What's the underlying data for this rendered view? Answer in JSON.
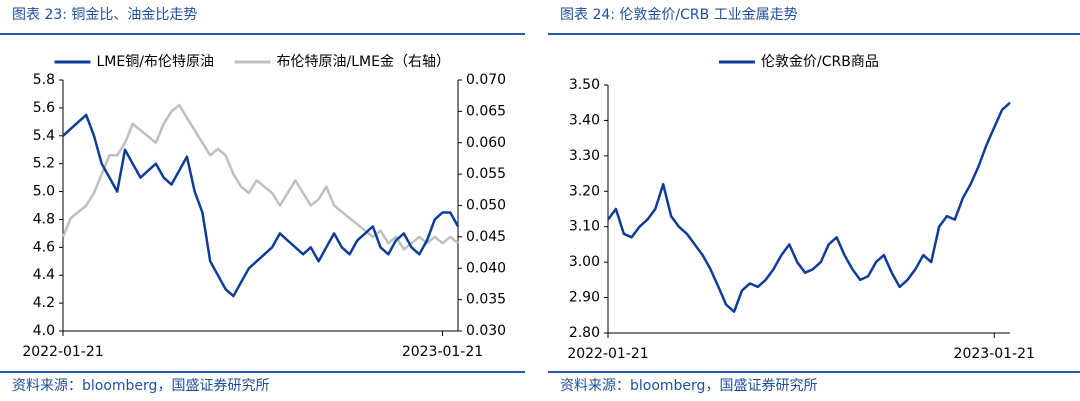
{
  "chart_data": [
    {
      "type": "line",
      "title": "图表 23: 铜金比、油金比走势",
      "source": "资料来源：bloomberg，国盛证券研究所",
      "categories": [
        "2022-01-21",
        null,
        null,
        null,
        null,
        null,
        null,
        null,
        null,
        null,
        null,
        null,
        null,
        null,
        null,
        null,
        null,
        null,
        null,
        null,
        null,
        null,
        null,
        null,
        null,
        null,
        null,
        null,
        null,
        null,
        null,
        null,
        null,
        null,
        null,
        null,
        null,
        null,
        null,
        null,
        null,
        null,
        null,
        null,
        null,
        null,
        null,
        null,
        null,
        "2023-01-21",
        null,
        null
      ],
      "series": [
        {
          "name": "LME铜/布伦特原油",
          "color": "#0e3c96",
          "axis": "y",
          "values": [
            5.4,
            5.45,
            5.5,
            5.55,
            5.4,
            5.2,
            5.1,
            5.0,
            5.3,
            5.2,
            5.1,
            5.15,
            5.2,
            5.1,
            5.05,
            5.15,
            5.25,
            5.0,
            4.85,
            4.5,
            4.4,
            4.3,
            4.25,
            4.35,
            4.45,
            4.5,
            4.55,
            4.6,
            4.7,
            4.65,
            4.6,
            4.55,
            4.6,
            4.5,
            4.6,
            4.7,
            4.6,
            4.55,
            4.65,
            4.7,
            4.75,
            4.6,
            4.55,
            4.65,
            4.7,
            4.6,
            4.55,
            4.65,
            4.8,
            4.85,
            4.85,
            4.75
          ]
        },
        {
          "name": "布伦特原油/LME金（右轴）",
          "color": "#bfbfbf",
          "axis": "y2",
          "values": [
            0.045,
            0.048,
            0.049,
            0.05,
            0.052,
            0.055,
            0.058,
            0.058,
            0.06,
            0.063,
            0.062,
            0.061,
            0.06,
            0.063,
            0.065,
            0.066,
            0.064,
            0.062,
            0.06,
            0.058,
            0.059,
            0.058,
            0.055,
            0.053,
            0.052,
            0.054,
            0.053,
            0.052,
            0.05,
            0.052,
            0.054,
            0.052,
            0.05,
            0.051,
            0.053,
            0.05,
            0.049,
            0.048,
            0.047,
            0.046,
            0.045,
            0.046,
            0.044,
            0.045,
            0.043,
            0.044,
            0.045,
            0.044,
            0.045,
            0.044,
            0.045,
            0.044
          ]
        }
      ],
      "ylim": [
        4.0,
        5.8
      ],
      "yticks": [
        {
          "value": 4.0,
          "label": "4.0"
        },
        4.2,
        4.4,
        4.6,
        4.8,
        {
          "value": 5.0,
          "label": "5.0"
        },
        5.2,
        5.4,
        5.6,
        5.8
      ],
      "y2lim": [
        0.03,
        0.07
      ],
      "y2ticks": [
        {
          "value": 0.03,
          "label": "0.030"
        },
        {
          "value": 0.035,
          "label": "0.035"
        },
        {
          "value": 0.04,
          "label": "0.040"
        },
        {
          "value": 0.045,
          "label": "0.045"
        },
        {
          "value": 0.05,
          "label": "0.050"
        },
        {
          "value": 0.055,
          "label": "0.055"
        },
        {
          "value": 0.06,
          "label": "0.060"
        },
        {
          "value": 0.065,
          "label": "0.065"
        },
        {
          "value": 0.07,
          "label": "0.070"
        }
      ],
      "grid": false,
      "legend": "top"
    },
    {
      "type": "line",
      "title": "图表 24: 伦敦金价/CRB 工业金属走势",
      "source": "资料来源：bloomberg，国盛证券研究所",
      "categories": [
        "2022-01-21",
        null,
        null,
        null,
        null,
        null,
        null,
        null,
        null,
        null,
        null,
        null,
        null,
        null,
        null,
        null,
        null,
        null,
        null,
        null,
        null,
        null,
        null,
        null,
        null,
        null,
        null,
        null,
        null,
        null,
        null,
        null,
        null,
        null,
        null,
        null,
        null,
        null,
        null,
        null,
        null,
        null,
        null,
        null,
        null,
        null,
        null,
        null,
        null,
        "2023-01-21",
        null,
        null
      ],
      "series": [
        {
          "name": "伦敦金价/CRB商品",
          "color": "#0e3c96",
          "axis": "y",
          "values": [
            3.12,
            3.15,
            3.08,
            3.07,
            3.1,
            3.12,
            3.15,
            3.22,
            3.13,
            3.1,
            3.08,
            3.05,
            3.02,
            2.98,
            2.93,
            2.88,
            2.86,
            2.92,
            2.94,
            2.93,
            2.95,
            2.98,
            3.02,
            3.05,
            3.0,
            2.97,
            2.98,
            3.0,
            3.05,
            3.07,
            3.02,
            2.98,
            2.95,
            2.96,
            3.0,
            3.02,
            2.97,
            2.93,
            2.95,
            2.98,
            3.02,
            3.0,
            3.1,
            3.13,
            3.12,
            3.18,
            3.22,
            3.27,
            3.33,
            3.38,
            3.43,
            3.45
          ]
        }
      ],
      "ylim": [
        2.8,
        3.5
      ],
      "yticks": [
        {
          "value": 2.8,
          "label": "2.80"
        },
        {
          "value": 2.9,
          "label": "2.90"
        },
        {
          "value": 3.0,
          "label": "3.00"
        },
        {
          "value": 3.1,
          "label": "3.10"
        },
        {
          "value": 3.2,
          "label": "3.20"
        },
        {
          "value": 3.3,
          "label": "3.30"
        },
        {
          "value": 3.4,
          "label": "3.40"
        },
        {
          "value": 3.5,
          "label": "3.50"
        }
      ],
      "grid": false,
      "legend": "top"
    }
  ]
}
